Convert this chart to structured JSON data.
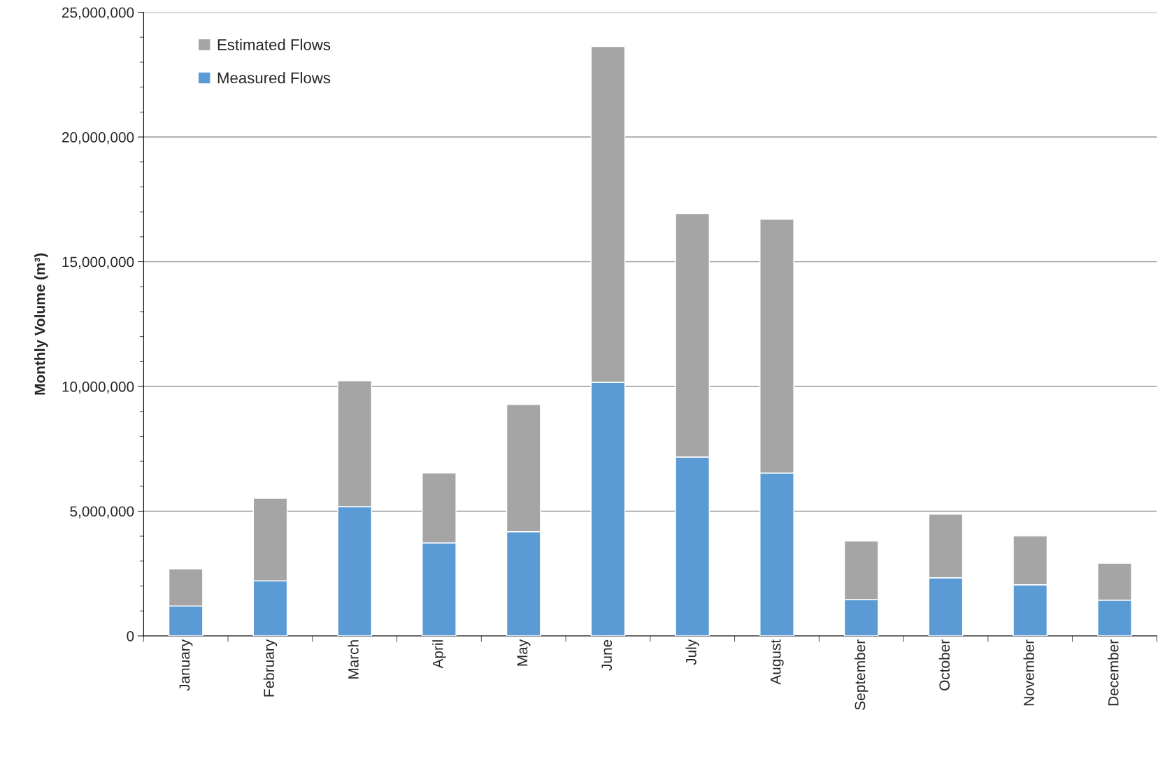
{
  "chart_data": {
    "type": "bar",
    "stacked": true,
    "ylabel": "Monthly Volume (m³)",
    "categories": [
      "January",
      "February",
      "March",
      "April",
      "May",
      "June",
      "July",
      "August",
      "September",
      "October",
      "November",
      "December"
    ],
    "series": [
      {
        "name": "Measured Flows",
        "color": "#5b9bd5",
        "values": [
          1200000,
          2210000,
          5180000,
          3730000,
          4180000,
          10170000,
          7170000,
          6530000,
          1460000,
          2330000,
          2050000,
          1430000
        ]
      },
      {
        "name": "Estimated Flows",
        "color": "#a5a5a5",
        "values": [
          1490000,
          3310000,
          5050000,
          2800000,
          5100000,
          13460000,
          9760000,
          10170000,
          2350000,
          2550000,
          1960000,
          1480000
        ]
      }
    ],
    "ylim": [
      0,
      25000000
    ],
    "yticks": [
      {
        "value": 0,
        "label": "0"
      },
      {
        "value": 5000000,
        "label": "5,000,000"
      },
      {
        "value": 10000000,
        "label": "10,000,000"
      },
      {
        "value": 15000000,
        "label": "15,000,000"
      },
      {
        "value": 20000000,
        "label": "20,000,000"
      },
      {
        "value": 25000000,
        "label": "25,000,000"
      },
      {
        "value": 1000000,
        "label": null
      },
      {
        "value": 2000000,
        "label": null
      },
      {
        "value": 3000000,
        "label": null
      },
      {
        "value": 4000000,
        "label": null
      },
      {
        "value": 6000000,
        "label": null
      },
      {
        "value": 7000000,
        "label": null
      },
      {
        "value": 8000000,
        "label": null
      },
      {
        "value": 9000000,
        "label": null
      },
      {
        "value": 11000000,
        "label": null
      },
      {
        "value": 12000000,
        "label": null
      },
      {
        "value": 13000000,
        "label": null
      },
      {
        "value": 14000000,
        "label": null
      },
      {
        "value": 16000000,
        "label": null
      },
      {
        "value": 17000000,
        "label": null
      },
      {
        "value": 18000000,
        "label": null
      },
      {
        "value": 19000000,
        "label": null
      },
      {
        "value": 21000000,
        "label": null
      },
      {
        "value": 22000000,
        "label": null
      },
      {
        "value": 23000000,
        "label": null
      },
      {
        "value": 24000000,
        "label": null
      }
    ],
    "grid": "y",
    "legend": "top left"
  }
}
